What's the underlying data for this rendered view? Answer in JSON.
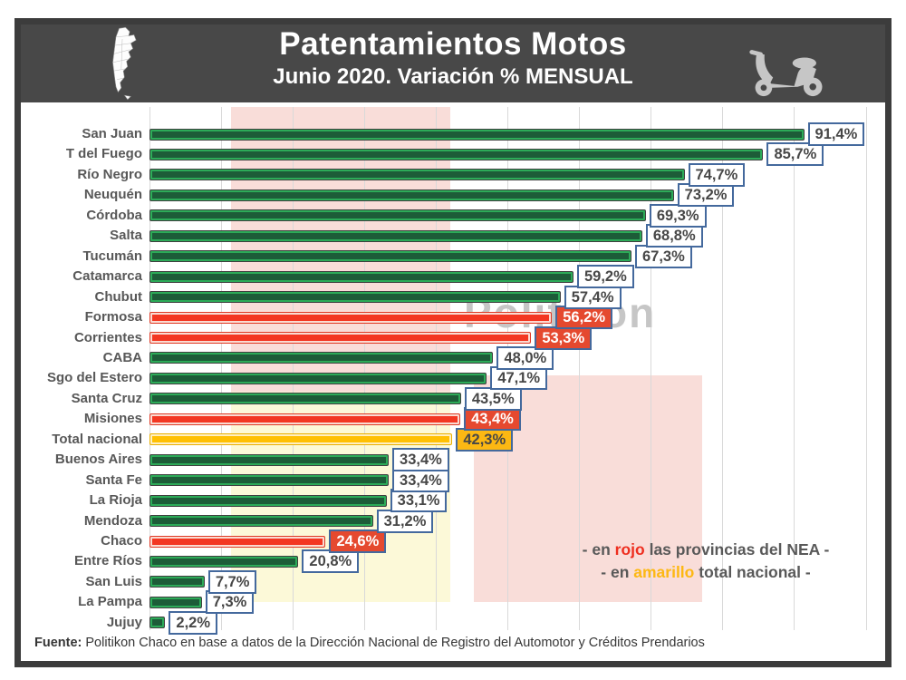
{
  "chart_data": {
    "type": "bar",
    "orientation": "horizontal",
    "title": "Patentamientos Motos",
    "subtitle": "Junio 2020. Variación % MENSUAL",
    "unit": "%",
    "xlim": [
      0,
      100
    ],
    "gridline_step": 10,
    "grid": true,
    "categories": [
      "San Juan",
      "T del Fuego",
      "Río Negro",
      "Neuquén",
      "Córdoba",
      "Salta",
      "Tucumán",
      "Catamarca",
      "Chubut",
      "Formosa",
      "Corrientes",
      "CABA",
      "Sgo del Estero",
      "Santa Cruz",
      "Misiones",
      "Total nacional",
      "Buenos Aires",
      "Santa Fe",
      "La Rioja",
      "Mendoza",
      "Chaco",
      "Entre Ríos",
      "San Luis",
      "La Pampa",
      "Jujuy"
    ],
    "values": [
      91.4,
      85.7,
      74.7,
      73.2,
      69.3,
      68.8,
      67.3,
      59.2,
      57.4,
      56.2,
      53.3,
      48.0,
      47.1,
      43.5,
      43.4,
      42.3,
      33.4,
      33.4,
      33.1,
      31.2,
      24.6,
      20.8,
      7.7,
      7.3,
      2.2
    ],
    "display_values": [
      "91,4%",
      "85,7%",
      "74,7%",
      "73,2%",
      "69,3%",
      "68,8%",
      "67,3%",
      "59,2%",
      "57,4%",
      "56,2%",
      "53,3%",
      "48,0%",
      "47,1%",
      "43,5%",
      "43,4%",
      "42,3%",
      "33,4%",
      "33,4%",
      "33,1%",
      "31,2%",
      "24,6%",
      "20,8%",
      "7,7%",
      "7,3%",
      "2,2%"
    ],
    "bar_colors": [
      "green",
      "green",
      "green",
      "green",
      "green",
      "green",
      "green",
      "green",
      "green",
      "red",
      "red",
      "green",
      "green",
      "green",
      "red",
      "yellow",
      "green",
      "green",
      "green",
      "green",
      "red",
      "green",
      "green",
      "green",
      "green"
    ]
  },
  "annotations": {
    "watermark": "Politikon",
    "note_line1": {
      "pre": "- en ",
      "highlight": "rojo",
      "post": " las provincias del NEA -"
    },
    "note_line2": {
      "pre": "- en ",
      "highlight": "amarillo",
      "post": " total nacional -"
    },
    "footer": {
      "prefix": "Fuente:",
      "text": " Politikon Chaco en base a datos de la Dirección Nacional de Registro del Automotor y Créditos Prendarios"
    }
  },
  "colors": {
    "header_bg": "#484848",
    "frame_border": "#3c3c3c",
    "green_fill": "#1d5c38",
    "green_edge": "#2cab58",
    "red_fill": "#f33722",
    "red_inner": "#fadbd2",
    "yellow_fill": "#ffc003",
    "yellow_inner": "#ffefc2",
    "box_border": "#44699d",
    "box_red_bg": "#e5492f",
    "box_yellow_bg": "#fcb813",
    "note_red": "#ee2e1f",
    "note_amber": "#fdb813",
    "band_pink": "#f9ddd9",
    "band_yellow": "#fcf9d8",
    "grid_color": "#d9d9d9",
    "label_color": "#585858",
    "watermark_color": "#c6c6c6"
  }
}
